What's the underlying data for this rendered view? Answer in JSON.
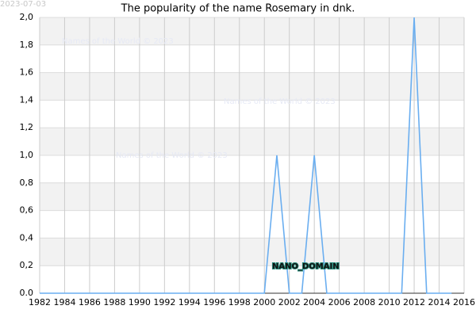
{
  "chart_data": {
    "type": "line",
    "title": "The popularity of the name Rosemary in dnk.",
    "date": "2023-07-03",
    "watermarks": [
      "Names of the World © 2023",
      "Names of the World © 2023",
      "Names of the World © 2023"
    ],
    "annotation": "NANO_DOMAIN",
    "x": [
      1982,
      1983,
      1984,
      1985,
      1986,
      1987,
      1988,
      1989,
      1990,
      1991,
      1992,
      1993,
      1994,
      1995,
      1996,
      1997,
      1998,
      1999,
      2000,
      2001,
      2002,
      2003,
      2004,
      2005,
      2006,
      2007,
      2008,
      2009,
      2010,
      2011,
      2012,
      2013,
      2014,
      2015
    ],
    "series": [
      {
        "color": "#6aaef0",
        "values": [
          0,
          0,
          0,
          0,
          0,
          0,
          0,
          0,
          0,
          0,
          0,
          0,
          0,
          0,
          0,
          0,
          0,
          0,
          0,
          1,
          0,
          0,
          1,
          0,
          0,
          0,
          0,
          0,
          0,
          0,
          2,
          0,
          0,
          0
        ]
      }
    ],
    "xlim": [
      1982,
      2016
    ],
    "xticks": [
      1982,
      1984,
      1986,
      1988,
      1990,
      1992,
      1994,
      1996,
      1998,
      2000,
      2002,
      2004,
      2006,
      2008,
      2010,
      2012,
      2014,
      2016
    ],
    "ylim": [
      0,
      2
    ],
    "yticks": [
      {
        "value": 0,
        "label": "0.0"
      },
      {
        "value": 0.2,
        "label": "0,2"
      },
      {
        "value": 0.4,
        "label": "0,4"
      },
      {
        "value": 0.6,
        "label": "0,6"
      },
      {
        "value": 0.8,
        "label": "0,8"
      },
      {
        "value": 1.0,
        "label": "1,0"
      },
      {
        "value": 1.2,
        "label": "1,2"
      },
      {
        "value": 1.4,
        "label": "1,4"
      },
      {
        "value": 1.6,
        "label": "1,6"
      },
      {
        "value": 1.8,
        "label": "1,8"
      },
      {
        "value": 2.0,
        "label": "2,0"
      }
    ],
    "grid": true,
    "bands": true
  }
}
